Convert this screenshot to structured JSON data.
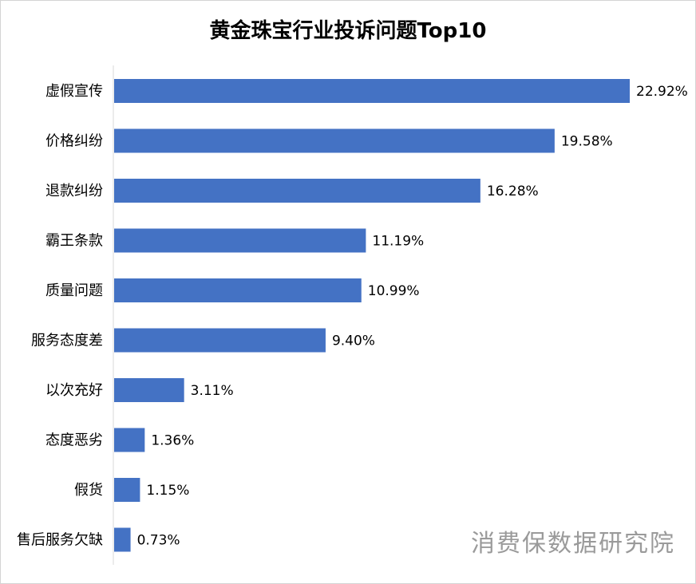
{
  "chart_data": {
    "type": "bar",
    "orientation": "horizontal",
    "title": "黄金珠宝行业投诉问题Top10",
    "categories": [
      "虚假宣传",
      "价格纠纷",
      "退款纠纷",
      "霸王条款",
      "质量问题",
      "服务态度差",
      "以次充好",
      "态度恶劣",
      "假货",
      "售后服务欠缺"
    ],
    "values": [
      22.92,
      19.58,
      16.28,
      11.19,
      10.99,
      9.4,
      3.11,
      1.36,
      1.15,
      0.73
    ],
    "value_labels": [
      "22.92%",
      "19.58%",
      "16.28%",
      "11.19%",
      "10.99%",
      "9.40%",
      "3.11%",
      "1.36%",
      "1.15%",
      "0.73%"
    ],
    "unit": "%",
    "xlim": [
      0,
      22.92
    ],
    "grid": false,
    "bar_color": "#4472c4"
  },
  "watermark": "消费保数据研究院"
}
